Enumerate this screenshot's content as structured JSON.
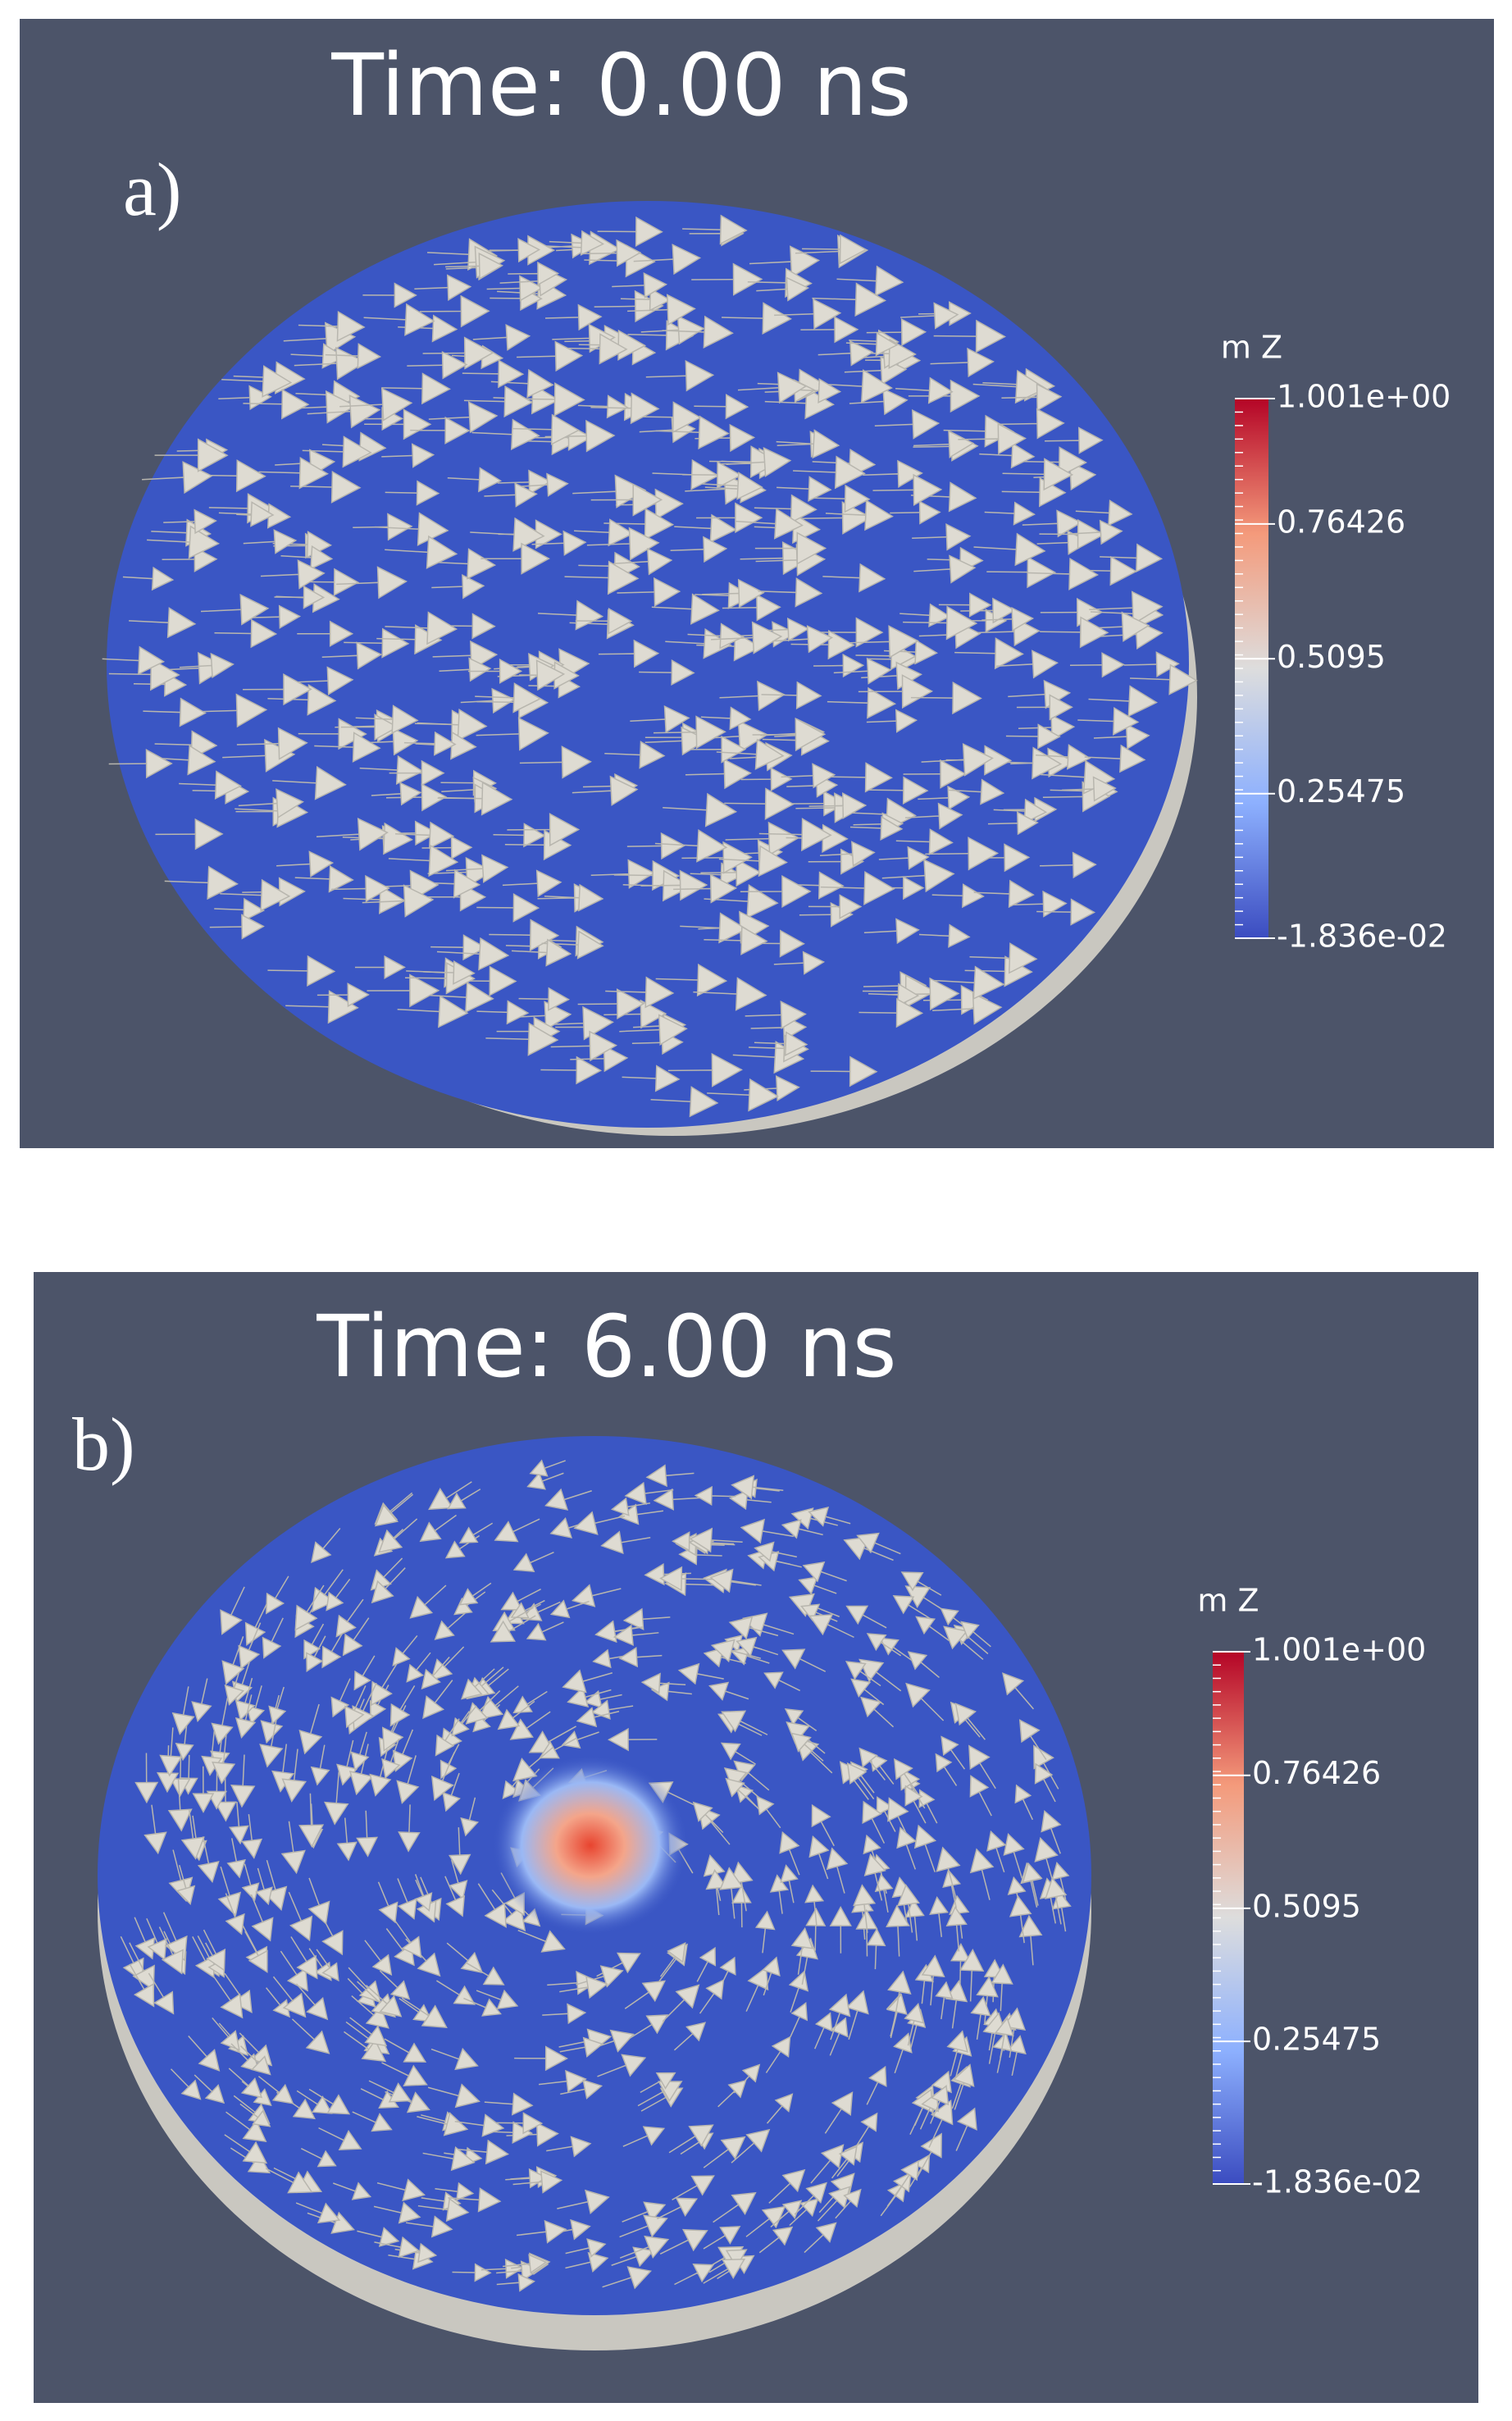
{
  "panels": [
    {
      "label": "a)",
      "title": "Time: 0.00 ns",
      "colorbar": {
        "title": "m Z",
        "range": [
          -0.01836,
          1.001
        ],
        "ticks": [
          {
            "value": 1.001,
            "label": "1.001e+00"
          },
          {
            "value": 0.76426,
            "label": "0.76426"
          },
          {
            "value": 0.5095,
            "label": "0.5095"
          },
          {
            "value": 0.25475,
            "label": "0.25475"
          },
          {
            "value": -0.01836,
            "label": "-1.836e-02"
          }
        ]
      }
    },
    {
      "label": "b)",
      "title": "Time: 6.00 ns",
      "colorbar": {
        "title": "m Z",
        "range": [
          -0.01836,
          1.001
        ],
        "ticks": [
          {
            "value": 1.001,
            "label": "1.001e+00"
          },
          {
            "value": 0.76426,
            "label": "0.76426"
          },
          {
            "value": 0.5095,
            "label": "0.5095"
          },
          {
            "value": 0.25475,
            "label": "0.25475"
          },
          {
            "value": -0.01836,
            "label": "-1.836e-02"
          }
        ]
      }
    }
  ]
}
